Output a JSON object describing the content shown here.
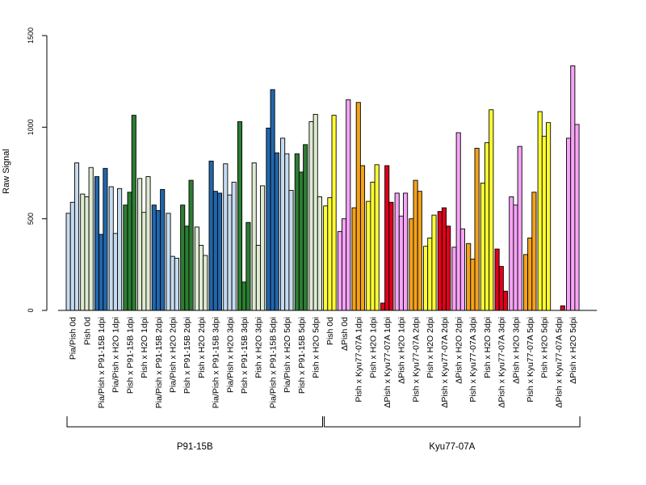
{
  "chart_data": {
    "type": "bar",
    "ylabel": "Raw Signal",
    "ylim": [
      0,
      1500
    ],
    "yticks": [
      "0",
      "500",
      "1000",
      "1500"
    ],
    "grid": false,
    "colors": {
      "pia_pish": "#c6dbef",
      "pish": "#deebd2",
      "pia_x_p91": "#2166ac",
      "pish_x_p91": "#2d7d32",
      "yellow": "#ffff33",
      "violet": "#f6a3f6",
      "orange": "#f4a21a",
      "red": "#e0001b"
    },
    "groups": [
      {
        "label": "P91-15B"
      },
      {
        "label": "Kyu77-07A"
      }
    ],
    "categories": [
      {
        "label": "Pia/Pish 0d",
        "color": "pia_pish",
        "values": [
          530,
          590,
          805
        ]
      },
      {
        "label": "Pish 0d",
        "color": "pish",
        "values": [
          635,
          620,
          780
        ]
      },
      {
        "label": "Pia/Pish x P91-15B 1dpi",
        "color": "pia_x_p91",
        "values": [
          730,
          415,
          775
        ]
      },
      {
        "label": "Pia/Pish x H2O 1dpi",
        "color": "pia_pish",
        "values": [
          675,
          420,
          665
        ]
      },
      {
        "label": "Pish x P91-15B 1dpi",
        "color": "pish_x_p91",
        "values": [
          575,
          645,
          1065
        ]
      },
      {
        "label": "Pish x H2O 1dpi",
        "color": "pish",
        "values": [
          720,
          535,
          730
        ]
      },
      {
        "label": "Pia/Pish x P91-15B 2dpi",
        "color": "pia_x_p91",
        "values": [
          575,
          545,
          660
        ]
      },
      {
        "label": "Pia/Pish x H2O 2dpi",
        "color": "pia_pish",
        "values": [
          530,
          295,
          285
        ]
      },
      {
        "label": "Pish x P91-15B 2dpi",
        "color": "pish_x_p91",
        "values": [
          575,
          460,
          710
        ]
      },
      {
        "label": "Pish x H2O 2dpi",
        "color": "pish",
        "values": [
          455,
          355,
          300
        ]
      },
      {
        "label": "Pia/Pish x P91-15B 3dpi",
        "color": "pia_x_p91",
        "values": [
          815,
          650,
          640
        ]
      },
      {
        "label": "Pia/Pish x H2O 3dpi",
        "color": "pia_pish",
        "values": [
          800,
          630,
          700
        ]
      },
      {
        "label": "Pish x P91-15B 3dpi",
        "color": "pish_x_p91",
        "values": [
          1030,
          155,
          480
        ]
      },
      {
        "label": "Pish x H2O 3dpi",
        "color": "pish",
        "values": [
          805,
          355,
          680
        ]
      },
      {
        "label": "Pia/Pish x P91-15B 5dpi",
        "color": "pia_x_p91",
        "values": [
          995,
          1205,
          860
        ]
      },
      {
        "label": "Pia/Pish x H2O 5dpi",
        "color": "pia_pish",
        "values": [
          940,
          855,
          655
        ]
      },
      {
        "label": "Pish x P91-15B 5dpi",
        "color": "pish_x_p91",
        "values": [
          855,
          755,
          905
        ]
      },
      {
        "label": "Pish x H2O 5dpi",
        "color": "pish",
        "values": [
          1030,
          1070,
          620
        ]
      },
      {
        "label": "Pish 0d",
        "color": "yellow",
        "values": [
          570,
          615,
          1065
        ]
      },
      {
        "label": "ΔPish 0d",
        "color": "violet",
        "values": [
          430,
          500,
          1150
        ]
      },
      {
        "label": "Pish x Kyu77-07A 1dpi",
        "color": "orange",
        "values": [
          560,
          1135,
          790
        ]
      },
      {
        "label": "Pish x H2O 1dpi",
        "color": "yellow",
        "values": [
          595,
          700,
          795
        ]
      },
      {
        "label": "ΔPish x Kyu77-07A 1dpi",
        "color": "red",
        "values": [
          40,
          790,
          590
        ]
      },
      {
        "label": "ΔPish x H2O 1dpi",
        "color": "violet",
        "values": [
          640,
          515,
          640
        ]
      },
      {
        "label": "Pish x Kyu77-07A 2dpi",
        "color": "orange",
        "values": [
          500,
          710,
          650
        ]
      },
      {
        "label": "Pish x H2O 2dpi",
        "color": "yellow",
        "values": [
          350,
          395,
          520
        ]
      },
      {
        "label": "ΔPish x Kyu77-07A 2dpi",
        "color": "red",
        "values": [
          540,
          560,
          460
        ]
      },
      {
        "label": "ΔPish x H2O 2dpi",
        "color": "violet",
        "values": [
          345,
          970,
          445
        ]
      },
      {
        "label": "Pish x Kyu77-07A 3dpi",
        "color": "orange",
        "values": [
          365,
          280,
          885
        ]
      },
      {
        "label": "Pish x H2O 3dpi",
        "color": "yellow",
        "values": [
          695,
          915,
          1095
        ]
      },
      {
        "label": "ΔPish x Kyu77-07A 3dpi",
        "color": "red",
        "values": [
          335,
          240,
          105
        ]
      },
      {
        "label": "ΔPish x H2O 3dpi",
        "color": "violet",
        "values": [
          620,
          575,
          895
        ]
      },
      {
        "label": "Pish x Kyu77-07A 5dpi",
        "color": "orange",
        "values": [
          305,
          395,
          645
        ]
      },
      {
        "label": "Pish x H2O 5dpi",
        "color": "yellow",
        "values": [
          1085,
          950,
          1025
        ]
      },
      {
        "label": "ΔPish x Kyu77-07A 5dpi",
        "color": "red",
        "values": [
          0,
          0,
          25
        ]
      },
      {
        "label": "ΔPish x H2O 5dpi",
        "color": "violet",
        "values": [
          940,
          1335,
          1015
        ]
      }
    ]
  }
}
